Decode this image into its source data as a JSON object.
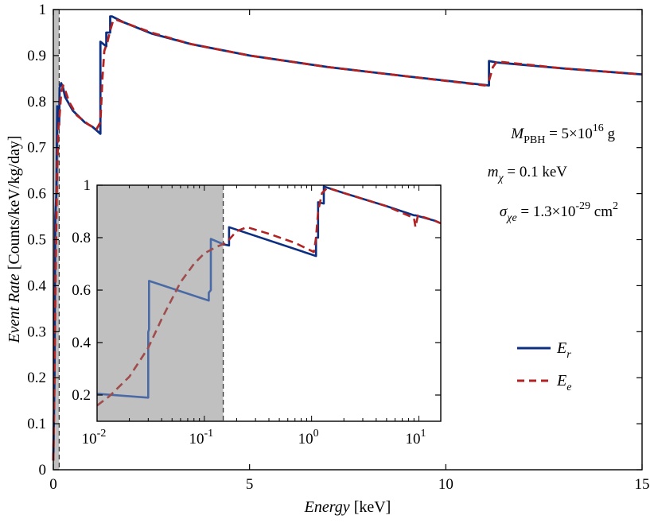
{
  "chart_data": [
    {
      "type": "line",
      "panel": "main",
      "xlabel_italic": "Energy",
      "xlabel_unit": "[keV]",
      "ylabel_italic": "Event Rate",
      "ylabel_unit": "[Counts/keV/kg/day]",
      "xlim": [
        0,
        15
      ],
      "ylim": [
        0,
        1
      ],
      "xticks": [
        0,
        5,
        10,
        15
      ],
      "xtick_labels": [
        "0",
        "5",
        "10",
        "15"
      ],
      "yticks": [
        0,
        0.1,
        0.2,
        0.3,
        0.4,
        0.5,
        0.6,
        0.7,
        0.8,
        0.9,
        1
      ],
      "ytick_labels": [
        "0",
        "0.1",
        "0.2",
        "0.3",
        "0.4",
        "0.5",
        "0.6",
        "0.7",
        "0.8",
        "0.9",
        "1"
      ],
      "shaded_region": [
        0,
        0.15
      ],
      "colors": {
        "Er": "#0d2f82",
        "Ee": "#b22222",
        "shade": "#c0c0c0"
      },
      "series": [
        {
          "name": "Er",
          "style": "solid",
          "x": [
            0.0,
            0.03,
            0.05,
            0.08,
            0.1,
            0.12,
            0.15,
            0.16,
            0.2,
            0.25,
            0.3,
            0.5,
            0.8,
            1.0,
            1.2,
            1.2,
            1.35,
            1.35,
            1.45,
            1.45,
            1.5,
            1.8,
            2.5,
            3.5,
            5.0,
            7.0,
            9.0,
            11.1,
            11.1,
            11.3,
            13.0,
            15.0
          ],
          "y": [
            0.02,
            0.2,
            0.55,
            0.6,
            0.79,
            0.78,
            0.75,
            0.83,
            0.84,
            0.83,
            0.81,
            0.78,
            0.755,
            0.745,
            0.73,
            0.93,
            0.92,
            0.95,
            0.95,
            0.985,
            0.985,
            0.972,
            0.948,
            0.925,
            0.9,
            0.875,
            0.855,
            0.835,
            0.888,
            0.885,
            0.872,
            0.859
          ]
        },
        {
          "name": "Ee",
          "style": "dashed",
          "x": [
            0.0,
            0.03,
            0.06,
            0.1,
            0.13,
            0.16,
            0.2,
            0.25,
            0.3,
            0.4,
            0.6,
            0.9,
            1.1,
            1.2,
            1.25,
            1.3,
            1.38,
            1.45,
            1.52,
            1.6,
            2.5,
            3.5,
            5.0,
            7.0,
            9.0,
            11.0,
            11.1,
            11.2,
            11.3,
            13.0,
            15.0
          ],
          "y": [
            0.02,
            0.2,
            0.45,
            0.66,
            0.74,
            0.77,
            0.82,
            0.835,
            0.825,
            0.8,
            0.77,
            0.75,
            0.74,
            0.755,
            0.85,
            0.91,
            0.93,
            0.955,
            0.975,
            0.978,
            0.95,
            0.925,
            0.9,
            0.875,
            0.855,
            0.835,
            0.845,
            0.875,
            0.887,
            0.872,
            0.859
          ]
        }
      ]
    },
    {
      "type": "line",
      "panel": "inset",
      "xscale": "log",
      "xlim": [
        0.01,
        16
      ],
      "ylim": [
        0.1,
        1.0
      ],
      "xtick_bases": [
        "10",
        "10",
        "10",
        "10"
      ],
      "xtick_exps": [
        "-2",
        "-1",
        "0",
        "1"
      ],
      "xtick_values": [
        0.01,
        0.1,
        1,
        10
      ],
      "yticks": [
        0.2,
        0.4,
        0.6,
        0.8,
        1
      ],
      "ytick_labels": [
        "0.2",
        "0.4",
        "0.6",
        "0.8",
        "1"
      ],
      "shaded_region": [
        0.01,
        0.15
      ],
      "colors": {
        "Er_shaded": "#4a6aa6",
        "Ee_shaded": "#a04c4c"
      },
      "series": [
        {
          "name": "Er",
          "style": "solid",
          "x": [
            0.01,
            0.03,
            0.03,
            0.0305,
            0.0305,
            0.11,
            0.11,
            0.115,
            0.115,
            0.15,
            0.17,
            0.17,
            1.1,
            1.1,
            1.15,
            1.15,
            1.3,
            1.3,
            1.3,
            2.0,
            5.0,
            9.0,
            9.0,
            9.3,
            14.0,
            16.0
          ],
          "y": [
            0.205,
            0.19,
            0.44,
            0.45,
            0.635,
            0.56,
            0.59,
            0.6,
            0.795,
            0.775,
            0.77,
            0.84,
            0.73,
            0.8,
            0.8,
            0.935,
            0.93,
            0.995,
            0.995,
            0.97,
            0.92,
            0.885,
            0.885,
            0.885,
            0.865,
            0.855
          ]
        },
        {
          "name": "Ee",
          "style": "dashed",
          "x": [
            0.01,
            0.013,
            0.02,
            0.03,
            0.04,
            0.06,
            0.08,
            0.1,
            0.13,
            0.16,
            0.2,
            0.25,
            0.4,
            0.7,
            1.05,
            1.1,
            1.15,
            1.25,
            1.4,
            2.0,
            5.0,
            9.0,
            9.3,
            9.8,
            14.0,
            16.0
          ],
          "y": [
            0.16,
            0.195,
            0.27,
            0.38,
            0.49,
            0.63,
            0.7,
            0.74,
            0.765,
            0.78,
            0.825,
            0.84,
            0.815,
            0.78,
            0.745,
            0.8,
            0.9,
            0.97,
            0.99,
            0.97,
            0.92,
            0.875,
            0.84,
            0.885,
            0.865,
            0.855
          ]
        }
      ]
    }
  ],
  "legend": {
    "items": [
      {
        "base": "E",
        "sub": "r",
        "color": "#0d2f82",
        "style": "solid"
      },
      {
        "base": "E",
        "sub": "e",
        "color": "#b22222",
        "style": "dashed"
      }
    ],
    "position": "right"
  },
  "annotations": {
    "mpbh_sym": "M",
    "mpbh_sub": "PBH",
    "mpbh_val": " = 5×10",
    "mpbh_exp": "16",
    "mpbh_unit": " g",
    "mchi_sym": "m",
    "mchi_sub": "χ",
    "mchi_val": " = 0.1 keV",
    "sigma_sym": "σ",
    "sigma_sub": "χe",
    "sigma_val": " = 1.3×10",
    "sigma_exp": "-29",
    "sigma_unit": " cm",
    "sigma_unit_exp": "2"
  }
}
